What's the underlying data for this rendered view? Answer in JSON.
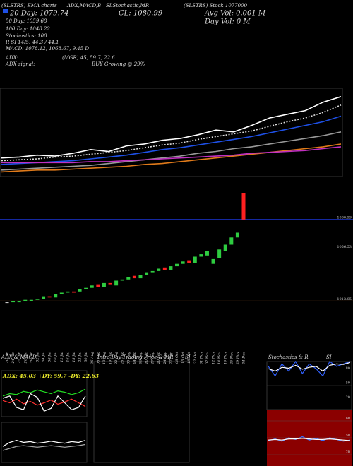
{
  "header": {
    "top_left": "(SLSTRS) EMA charts",
    "top_mid1": "ADX,MACD,B",
    "top_mid2": "SLStochastic,MR",
    "top_right": "(SLSTRS) Stock 1077000",
    "close": "CL: 1080.99",
    "day20": "20 Day: 1079.74",
    "avg_vol": "Avg Vol: 0.001 M",
    "day50": "50 Day: 1059.68",
    "day_vol": "Day Vol: 0  M",
    "day100": "100 Day: 1048.22",
    "stoch": "Stochastics: 100",
    "rsi": "R SI 14/5: 44.3 / 44.1",
    "macd": "MACD: 1078.12, 1068.67, 9.45 D",
    "adx": "ADX:",
    "adx_vals": "(MGR) 45, 59.7, 22.6",
    "adx_signal": "ADX signal:",
    "signal": "BUY Growing @ 29%"
  },
  "chart_data": [
    {
      "type": "line",
      "ylim": [
        995,
        1090
      ],
      "series": [
        {
          "color": "#ffffff",
          "values": [
            1015,
            1016,
            1018,
            1017,
            1020,
            1024,
            1022,
            1028,
            1030,
            1034,
            1036,
            1040,
            1045,
            1043,
            1050,
            1058,
            1062,
            1066,
            1075,
            1081
          ]
        },
        {
          "color": "#dddddd",
          "dash": true,
          "values": [
            1012,
            1013,
            1014,
            1016,
            1017,
            1019,
            1021,
            1023,
            1026,
            1029,
            1031,
            1035,
            1038,
            1041,
            1044,
            1049,
            1054,
            1058,
            1064,
            1072
          ]
        },
        {
          "color": "#1e50e6",
          "values": [
            1008,
            1009,
            1010,
            1011,
            1012,
            1014,
            1016,
            1018,
            1021,
            1024,
            1026,
            1029,
            1032,
            1035,
            1038,
            1042,
            1046,
            1050,
            1054,
            1060
          ]
        },
        {
          "color": "#999999",
          "values": [
            1002,
            1003,
            1004,
            1005,
            1006,
            1007,
            1009,
            1011,
            1013,
            1015,
            1017,
            1020,
            1022,
            1025,
            1027,
            1030,
            1033,
            1036,
            1039,
            1043
          ]
        },
        {
          "color": "#e07a1a",
          "values": [
            1000,
            1001,
            1002,
            1002,
            1003,
            1004,
            1005,
            1006,
            1008,
            1009,
            1011,
            1013,
            1015,
            1017,
            1019,
            1021,
            1023,
            1025,
            1027,
            1030
          ]
        },
        {
          "color": "#c030c0",
          "values": [
            1010,
            1010,
            1010,
            1010,
            1010,
            1011,
            1011,
            1012,
            1013,
            1014,
            1015,
            1016,
            1017,
            1018,
            1020,
            1021,
            1022,
            1023,
            1025,
            1027
          ]
        }
      ]
    },
    {
      "type": "candlestick",
      "ylim": [
        1005,
        1105
      ],
      "yticks": [
        1080.99,
        1056.53,
        1013.05
      ],
      "categories": [
        "20 Jun",
        "24 Jun",
        "25 Jun",
        "26 Jun",
        "28 Jun",
        "02 Jul",
        "04 Jul",
        "08 Jul",
        "10 Jul",
        "12 Jul",
        "16 Jul",
        "18 Jul",
        "22 Jul",
        "30 Jul",
        "06 Aug",
        "08 Aug",
        "13 Aug",
        "19 Aug",
        "22 Aug",
        "26 Aug",
        "30 Aug",
        "04 Sep",
        "06 Sep",
        "10 Sep",
        "17 Sep",
        "20 Sep",
        "24 Sep",
        "27 Sep",
        "08 Oct",
        "15 Oct",
        "18 Oct",
        "22 Oct",
        "01 Nov",
        "07 Nov",
        "12 Nov",
        "14 Nov",
        "19 Nov",
        "26 Nov",
        "29 Nov",
        "04 Dec"
      ],
      "open": [
        1012,
        1012,
        1012,
        1013,
        1013,
        1014,
        1015,
        1017,
        1016,
        1019,
        1020,
        1021,
        1021,
        1023,
        1024,
        1027,
        1025,
        1028,
        1026,
        1030,
        1031,
        1034,
        1032,
        1035,
        1037,
        1038,
        1041,
        1039,
        1042,
        1044,
        1047,
        1045,
        1050,
        1051,
        1044,
        1049,
        1055,
        1060,
        1066,
        1103
      ],
      "close": [
        1012,
        1013,
        1013,
        1014,
        1014,
        1015,
        1017,
        1016,
        1019,
        1020,
        1021,
        1020,
        1023,
        1024,
        1026,
        1025,
        1028,
        1027,
        1030,
        1031,
        1033,
        1032,
        1035,
        1037,
        1038,
        1040,
        1039,
        1042,
        1044,
        1046,
        1045,
        1050,
        1052,
        1055,
        1048,
        1056,
        1060,
        1066,
        1070,
        1081
      ],
      "up_color": "#2ecc40",
      "down_color": "#ff2020"
    },
    {
      "type": "line",
      "title": "ADX  & MACD",
      "label": "ADX: 45.03 +DY: 59.7 -DY: 22.63",
      "ylim": [
        0,
        100
      ],
      "series": [
        {
          "color": "#22dd22",
          "values": [
            45,
            50,
            48,
            55,
            52,
            58,
            54,
            50,
            56,
            53,
            48,
            52,
            60
          ]
        },
        {
          "color": "#ff3030",
          "values": [
            35,
            30,
            38,
            28,
            33,
            25,
            30,
            36,
            27,
            32,
            38,
            30,
            22
          ]
        },
        {
          "color": "#ffffff",
          "values": [
            40,
            45,
            20,
            15,
            50,
            42,
            12,
            18,
            45,
            30,
            15,
            20,
            45
          ]
        }
      ]
    },
    {
      "type": "line",
      "ylim": [
        0,
        100
      ],
      "series": [
        {
          "color": "#ffffff",
          "values": [
            40,
            50,
            55,
            50,
            52,
            48,
            50,
            53,
            50,
            48,
            52,
            50,
            55
          ]
        },
        {
          "color": "#aaaaaa",
          "values": [
            30,
            35,
            40,
            42,
            40,
            38,
            40,
            42,
            40,
            38,
            40,
            42,
            45
          ]
        }
      ]
    },
    {
      "type": "empty",
      "title": "Intra Day Trading Price  & MR",
      "title2": "SI"
    },
    {
      "type": "line",
      "title": "Stochastics & R",
      "title2": "SI",
      "ylim": [
        0,
        100
      ],
      "yticks": [
        80,
        50,
        20
      ],
      "series": [
        {
          "color": "#3060ff",
          "values": [
            90,
            70,
            95,
            80,
            100,
            75,
            95,
            85,
            70,
            100,
            90,
            95,
            100
          ]
        },
        {
          "color": "#ffffff",
          "values": [
            85,
            80,
            88,
            86,
            92,
            84,
            88,
            90,
            80,
            92,
            95,
            94,
            98
          ]
        }
      ]
    },
    {
      "type": "line",
      "ylim": [
        0,
        100
      ],
      "yticks": [
        80,
        50,
        20
      ],
      "background": "#8b0000",
      "series": [
        {
          "color": "#3a70ff",
          "values": [
            45,
            48,
            44,
            50,
            47,
            52,
            46,
            49,
            45,
            50,
            47,
            44,
            46
          ]
        },
        {
          "color": "#ffffff",
          "values": [
            46,
            47,
            46,
            48,
            48,
            49,
            48,
            47,
            47,
            48,
            47,
            46,
            45
          ]
        }
      ]
    }
  ]
}
